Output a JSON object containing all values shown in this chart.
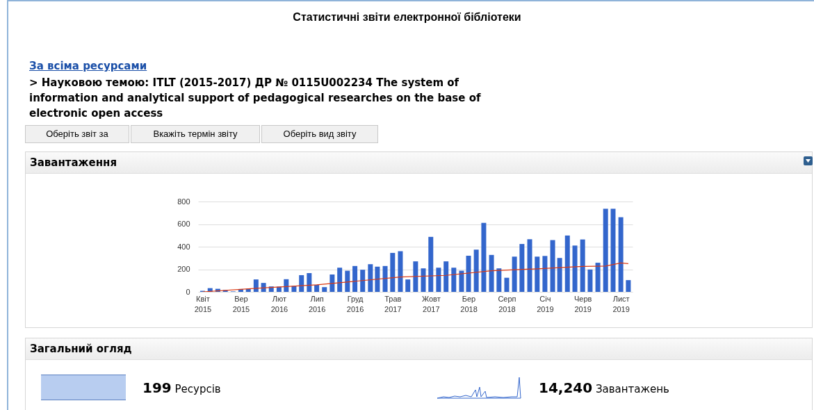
{
  "chart_data": {
    "type": "bar",
    "title": "Завантаження",
    "annotations": [
      "Статистичні звіти електронної бібліотеки",
      "За всіма ресурсами",
      "> Науковою темою: ITLT (2015-2017) ДР № 0115U002234 The system of information and analytical support of pedagogical researches on the base of electronic open access",
      "Оберіть звіт за",
      "Вкажіть термін звіту",
      "Оберіть вид звіту",
      "Загальний огляд",
      "199",
      "Ресурсів",
      "14,240",
      "Завантажень"
    ],
    "x": [
      "2015-04",
      "2015-05",
      "2015-06",
      "2015-07",
      "2015-08",
      "2015-09",
      "2015-10",
      "2015-11",
      "2015-12",
      "2016-01",
      "2016-02",
      "2016-03",
      "2016-04",
      "2016-05",
      "2016-06",
      "2016-07",
      "2016-08",
      "2016-09",
      "2016-10",
      "2016-11",
      "2016-12",
      "2017-01",
      "2017-02",
      "2017-03",
      "2017-04",
      "2017-05",
      "2017-06",
      "2017-07",
      "2017-08",
      "2017-09",
      "2017-10",
      "2017-11",
      "2017-12",
      "2018-01",
      "2018-02",
      "2018-03",
      "2018-04",
      "2018-05",
      "2018-06",
      "2018-07",
      "2018-08",
      "2018-09",
      "2018-10",
      "2018-11",
      "2018-12",
      "2019-01",
      "2019-02",
      "2019-03",
      "2019-04",
      "2019-05",
      "2019-06",
      "2019-07",
      "2019-08",
      "2019-09",
      "2019-10",
      "2019-11",
      "2019-12"
    ],
    "series": [
      {
        "color": "#3366cc",
        "values": [
          10,
          33,
          27,
          17,
          4,
          25,
          27,
          110,
          79,
          48,
          46,
          112,
          52,
          148,
          166,
          62,
          42,
          154,
          214,
          187,
          229,
          196,
          245,
          223,
          229,
          345,
          360,
          110,
          270,
          208,
          487,
          214,
          270,
          214,
          187,
          320,
          374,
          611,
          327,
          208,
          125,
          312,
          424,
          466,
          312,
          318,
          458,
          300,
          499,
          410,
          464,
          198,
          258,
          736,
          736,
          661,
          104
        ]
      },
      {
        "type": "line",
        "color": "#dc3912",
        "x": [
          "2015-04",
          "2015-11",
          "2016-07",
          "2016-12",
          "2017-06",
          "2017-12",
          "2018-06",
          "2018-12",
          "2019-06",
          "2019-09",
          "2019-11",
          "2019-12"
        ],
        "values": [
          0,
          31,
          62,
          94,
          131,
          146,
          187,
          204,
          225,
          229,
          256,
          250
        ]
      }
    ],
    "xlim": [
      "2015-03-14",
      "2019-12-18"
    ],
    "xticks": [
      {
        "value": "2015-04",
        "label": "Квіт 2015"
      },
      {
        "value": "2015-09",
        "label": "Вер 2015"
      },
      {
        "value": "2016-02",
        "label": "Лют 2016"
      },
      {
        "value": "2016-07",
        "label": "Лип 2016"
      },
      {
        "value": "2016-12",
        "label": "Груд 2016"
      },
      {
        "value": "2017-05",
        "label": "Трав 2017"
      },
      {
        "value": "2017-10",
        "label": "Жовт 2017"
      },
      {
        "value": "2018-03",
        "label": "Бер 2018"
      },
      {
        "value": "2018-08",
        "label": "Серп 2018"
      },
      {
        "value": "2019-01",
        "label": "Січ 2019"
      },
      {
        "value": "2019-06",
        "label": "Черв 2019"
      },
      {
        "value": "2019-11",
        "label": "Лист 2019"
      }
    ],
    "ylim": [
      0,
      800
    ],
    "yticks": [
      0,
      200,
      400,
      600,
      800
    ],
    "grid": "y"
  }
}
